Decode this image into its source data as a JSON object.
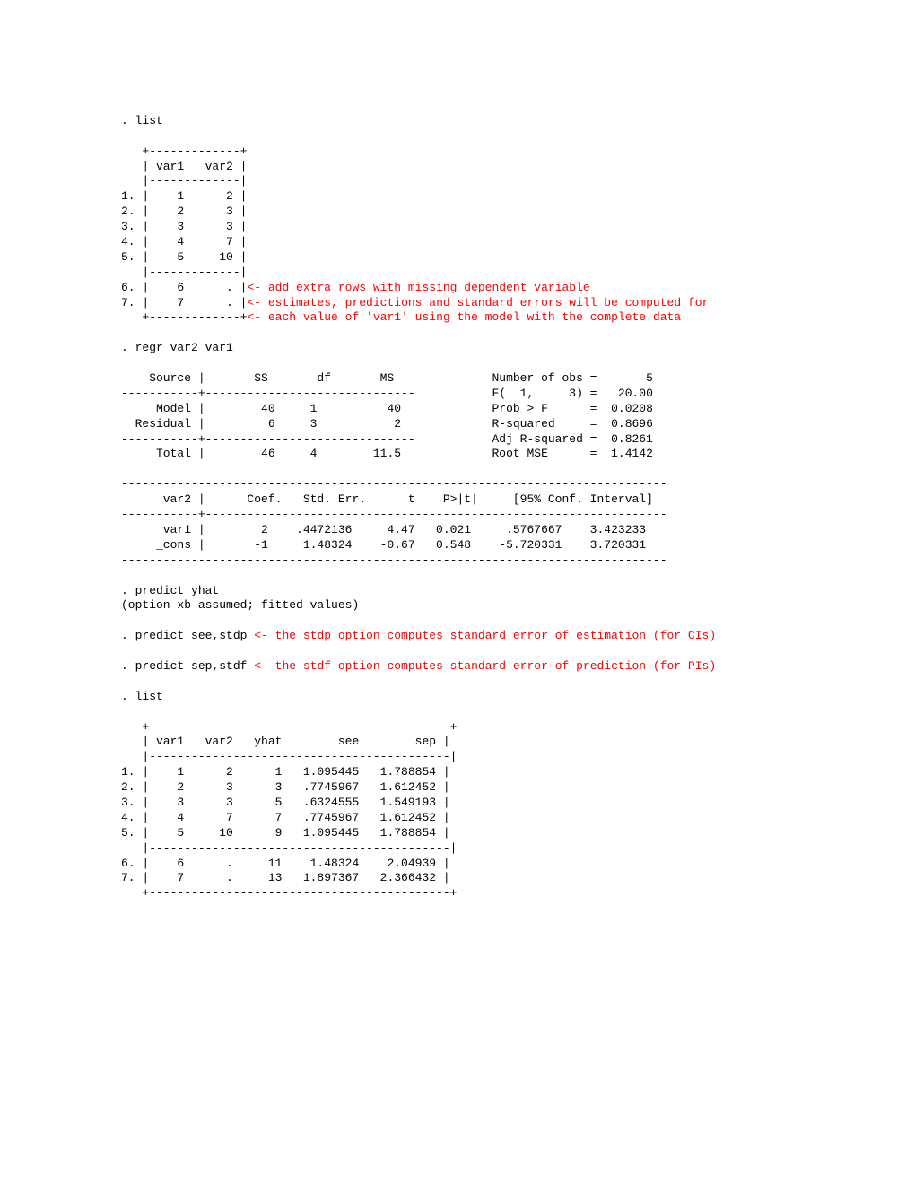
{
  "cmd_list1": ". list",
  "tab1_top": "   +-------------+",
  "tab1_hdr": "   | var1   var2 |",
  "tab1_sep": "   |-------------|",
  "tab1_r1": "1. |    1      2 |",
  "tab1_r2": "2. |    2      3 |",
  "tab1_r3": "3. |    3      3 |",
  "tab1_r4": "4. |    4      7 |",
  "tab1_r5": "5. |    5     10 |",
  "tab1_r6a": "6. |    6      . |",
  "tab1_r6b": "<- add extra rows with missing dependent variable",
  "tab1_r7a": "7. |    7      . |",
  "tab1_r7b": "<- estimates, predictions and standard errors will be computed for",
  "tab1_bot_a": "   +-------------+",
  "tab1_bot_b": "<- each value of 'var1' using the model with the complete data",
  "cmd_regr": ". regr var2 var1",
  "an_hdr": "    Source |       SS       df       MS              Number of obs =       5",
  "an_sep1": "-----------+------------------------------           F(  1,     3) =   20.00",
  "an_model": "     Model |        40     1          40             Prob > F      =  0.0208",
  "an_resid": "  Residual |         6     3           2             R-squared     =  0.8696",
  "an_sep2": "-----------+------------------------------           Adj R-squared =  0.8261",
  "an_total": "     Total |        46     4        11.5             Root MSE      =  1.4142",
  "co_top": "------------------------------------------------------------------------------",
  "co_hdr": "      var2 |      Coef.   Std. Err.      t    P>|t|     [95% Conf. Interval]",
  "co_sep": "-----------+------------------------------------------------------------------",
  "co_var1": "      var1 |        2    .4472136     4.47   0.021     .5767667    3.423233",
  "co_cons": "     _cons |       -1     1.48324    -0.67   0.548    -5.720331    3.720331",
  "co_bot": "------------------------------------------------------------------------------",
  "cmd_pred1": ". predict yhat",
  "pred_note": "(option xb assumed; fitted values)",
  "cmd_see_a": ". predict see,stdp ",
  "cmd_see_b": "<- the stdp option computes standard error of estimation (for CIs)",
  "cmd_sep_a": ". predict sep,stdf ",
  "cmd_sep_b": "<- the stdf option computes standard error of prediction (for PIs)",
  "cmd_list2": ". list",
  "tab2_top": "   +-------------------------------------------+",
  "tab2_hdr": "   | var1   var2   yhat        see        sep |",
  "tab2_sep": "   |-------------------------------------------|",
  "tab2_r1": "1. |    1      2      1   1.095445   1.788854 |",
  "tab2_r2": "2. |    2      3      3   .7745967   1.612452 |",
  "tab2_r3": "3. |    3      3      5   .6324555   1.549193 |",
  "tab2_r4": "4. |    4      7      7   .7745967   1.612452 |",
  "tab2_r5": "5. |    5     10      9   1.095445   1.788854 |",
  "tab2_r6": "6. |    6      .     11    1.48324    2.04939 |",
  "tab2_r7": "7. |    7      .     13   1.897367   2.366432 |",
  "tab2_bot": "   +-------------------------------------------+"
}
